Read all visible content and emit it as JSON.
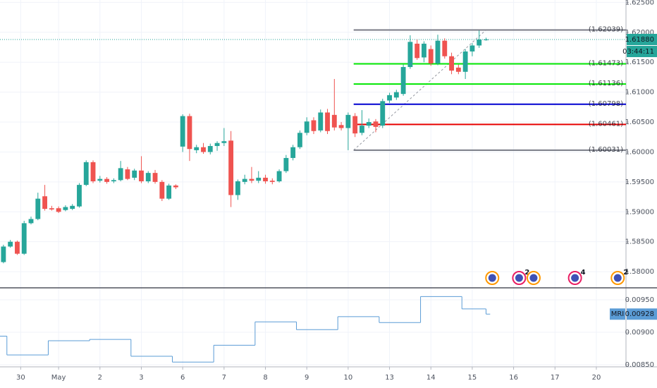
{
  "chart_data": {
    "type": "candlestick",
    "xlim": [
      -0.5,
      90.3
    ],
    "xticks": [
      {
        "value": 2.5,
        "label": "30"
      },
      {
        "value": 8,
        "label": "May"
      },
      {
        "value": 14,
        "label": "2"
      },
      {
        "value": 20,
        "label": "3"
      },
      {
        "value": 26,
        "label": "6"
      },
      {
        "value": 32,
        "label": "7"
      },
      {
        "value": 38,
        "label": "8"
      },
      {
        "value": 44,
        "label": "9"
      },
      {
        "value": 50,
        "label": "10"
      },
      {
        "value": 56,
        "label": "13"
      },
      {
        "value": 62,
        "label": "14"
      },
      {
        "value": 68,
        "label": "15"
      },
      {
        "value": 74,
        "label": "16"
      },
      {
        "value": 80,
        "label": "17"
      },
      {
        "value": 86,
        "label": "20"
      }
    ],
    "ylim": [
      1.5773,
      1.6254
    ],
    "yticks": [
      {
        "value": 1.58,
        "label": "1.58000"
      },
      {
        "value": 1.585,
        "label": "1.58500"
      },
      {
        "value": 1.59,
        "label": "1.59000"
      },
      {
        "value": 1.595,
        "label": "1.59500"
      },
      {
        "value": 1.6,
        "label": "1.60000"
      },
      {
        "value": 1.605,
        "label": "1.60500"
      },
      {
        "value": 1.61,
        "label": "1.61000"
      },
      {
        "value": 1.615,
        "label": "1.61500"
      },
      {
        "value": 1.62,
        "label": "1.62000"
      },
      {
        "value": 1.625,
        "label": "1.62500"
      }
    ],
    "grid": true,
    "up_color": "#26a69a",
    "down_color": "#ef5350",
    "candles": [
      [
        1.5816,
        1.5845,
        1.5814,
        1.5842
      ],
      [
        1.5842,
        1.5853,
        1.584,
        1.585
      ],
      [
        1.585,
        1.5852,
        1.5828,
        1.583
      ],
      [
        1.583,
        1.5885,
        1.5828,
        1.5881
      ],
      [
        1.5881,
        1.5892,
        1.5879,
        1.5888
      ],
      [
        1.5888,
        1.5932,
        1.5886,
        1.5922
      ],
      [
        1.5926,
        1.5945,
        1.5902,
        1.5905
      ],
      [
        1.5906,
        1.591,
        1.5902,
        1.5904
      ],
      [
        1.5906,
        1.5909,
        1.5898,
        1.59
      ],
      [
        1.5903,
        1.5911,
        1.5901,
        1.5908
      ],
      [
        1.5905,
        1.5913,
        1.5903,
        1.591
      ],
      [
        1.5909,
        1.5948,
        1.5907,
        1.5945
      ],
      [
        1.5945,
        1.5986,
        1.5943,
        1.5983
      ],
      [
        1.5983,
        1.5986,
        1.5948,
        1.5951
      ],
      [
        1.5952,
        1.596,
        1.5949,
        1.5955
      ],
      [
        1.5955,
        1.5958,
        1.5947,
        1.595
      ],
      [
        1.5951,
        1.5956,
        1.5948,
        1.5953
      ],
      [
        1.5953,
        1.5985,
        1.5951,
        1.5973
      ],
      [
        1.5971,
        1.5975,
        1.5953,
        1.5955
      ],
      [
        1.5957,
        1.5972,
        1.5953,
        1.5969
      ],
      [
        1.5969,
        1.5993,
        1.5948,
        1.5951
      ],
      [
        1.5951,
        1.5968,
        1.5948,
        1.5965
      ],
      [
        1.5965,
        1.597,
        1.5947,
        1.595
      ],
      [
        1.595,
        1.5953,
        1.5918,
        1.5922
      ],
      [
        1.5922,
        1.5947,
        1.592,
        1.5944
      ],
      [
        1.5944,
        1.5946,
        1.5938,
        1.5941
      ],
      [
        1.6009,
        1.6063,
        1.6,
        1.606
      ],
      [
        1.606,
        1.6064,
        1.5985,
        1.6005
      ],
      [
        1.6003,
        1.6012,
        1.5998,
        1.6008
      ],
      [
        1.6008,
        1.6015,
        1.5997,
        1.6
      ],
      [
        1.6,
        1.6014,
        1.5996,
        1.601
      ],
      [
        1.601,
        1.6018,
        1.6002,
        1.6015
      ],
      [
        1.6015,
        1.604,
        1.601,
        1.6018
      ],
      [
        1.6019,
        1.6035,
        1.5908,
        1.5928
      ],
      [
        1.5928,
        1.5954,
        1.592,
        1.5951
      ],
      [
        1.595,
        1.5962,
        1.5946,
        1.5955
      ],
      [
        1.5955,
        1.5975,
        1.5948,
        1.5952
      ],
      [
        1.5952,
        1.5968,
        1.5948,
        1.5957
      ],
      [
        1.5957,
        1.5962,
        1.5947,
        1.5951
      ],
      [
        1.5952,
        1.5956,
        1.5946,
        1.595
      ],
      [
        1.5951,
        1.5971,
        1.5949,
        1.5968
      ],
      [
        1.5968,
        1.5995,
        1.5965,
        1.599
      ],
      [
        1.599,
        1.6012,
        1.5986,
        1.6008
      ],
      [
        1.6008,
        1.6036,
        1.6005,
        1.6032
      ],
      [
        1.6032,
        1.6058,
        1.6028,
        1.6051
      ],
      [
        1.6053,
        1.6058,
        1.603,
        1.6035
      ],
      [
        1.6036,
        1.6071,
        1.6033,
        1.6066
      ],
      [
        1.6066,
        1.6072,
        1.603,
        1.6035
      ],
      [
        1.6062,
        1.6122,
        1.6036,
        1.6041
      ],
      [
        1.6045,
        1.605,
        1.6036,
        1.604
      ],
      [
        1.604,
        1.6066,
        1.6003,
        1.6062
      ],
      [
        1.606,
        1.6065,
        1.6025,
        1.6031
      ],
      [
        1.6032,
        1.607,
        1.6028,
        1.6044
      ],
      [
        1.6044,
        1.6056,
        1.604,
        1.605
      ],
      [
        1.6051,
        1.6055,
        1.6033,
        1.6042
      ],
      [
        1.6044,
        1.6089,
        1.604,
        1.6085
      ],
      [
        1.6086,
        1.6099,
        1.6082,
        1.6095
      ],
      [
        1.6091,
        1.6104,
        1.6087,
        1.61
      ],
      [
        1.6097,
        1.6146,
        1.6094,
        1.6142
      ],
      [
        1.6142,
        1.6195,
        1.6139,
        1.6184
      ],
      [
        1.6181,
        1.6188,
        1.6154,
        1.6157
      ],
      [
        1.6158,
        1.6185,
        1.615,
        1.6181
      ],
      [
        1.6172,
        1.6178,
        1.6144,
        1.6148
      ],
      [
        1.6148,
        1.6196,
        1.6145,
        1.6186
      ],
      [
        1.6186,
        1.619,
        1.6156,
        1.616
      ],
      [
        1.616,
        1.6166,
        1.613,
        1.6136
      ],
      [
        1.6141,
        1.6146,
        1.613,
        1.6134
      ],
      [
        1.6134,
        1.6172,
        1.6122,
        1.6168
      ],
      [
        1.6168,
        1.6182,
        1.616,
        1.6178
      ],
      [
        1.6178,
        1.6203,
        1.6174,
        1.6188
      ],
      [
        1.6188,
        1.6191,
        1.6186,
        1.6188
      ]
    ],
    "fib_x": [
      50.8,
      70
    ],
    "fib_levels": [
      {
        "value": 1.62039,
        "label": "(1.62039)",
        "color": "#787b86"
      },
      {
        "value": 1.61473,
        "label": "(1.61473)",
        "color": "#00e600"
      },
      {
        "value": 1.61136,
        "label": "(1.61136)",
        "color": "#00e600"
      },
      {
        "value": 1.60798,
        "label": "(1.60798)",
        "color": "#0000d0"
      },
      {
        "value": 1.60461,
        "label": "(1.60461)",
        "color": "#e60000"
      },
      {
        "value": 1.60031,
        "label": "(1.60031)",
        "color": "#787b86"
      }
    ],
    "last_price": {
      "value": 1.6188,
      "label": "1.61880"
    },
    "countdown": "03:44:11",
    "events": [
      {
        "x": 70.9
      },
      {
        "x": 74.8,
        "count": 2
      },
      {
        "x": 76.9
      },
      {
        "x": 82.9,
        "count": 4
      },
      {
        "x": 89.1,
        "count": 2
      }
    ],
    "indicator": {
      "name": "MRI",
      "color": "#5b9cd6",
      "ylim": [
        0.008467,
        0.009685
      ],
      "yticks": [
        {
          "value": 0.0085,
          "label": "0.00850"
        },
        {
          "value": 0.009,
          "label": "0.00900"
        },
        {
          "value": 0.0095,
          "label": "0.00950"
        }
      ],
      "x": [
        -0.5,
        0.5,
        6.5,
        12.5,
        18.5,
        24.5,
        30.5,
        36.5,
        42.5,
        48.5,
        54.5,
        60.5,
        66.5,
        70
      ],
      "values": [
        0.00894,
        0.00865,
        0.00887,
        0.00889,
        0.00863,
        0.00854,
        0.0088,
        0.00916,
        0.00904,
        0.00924,
        0.00915,
        0.00955,
        0.00936,
        0.00928
      ]
    }
  }
}
